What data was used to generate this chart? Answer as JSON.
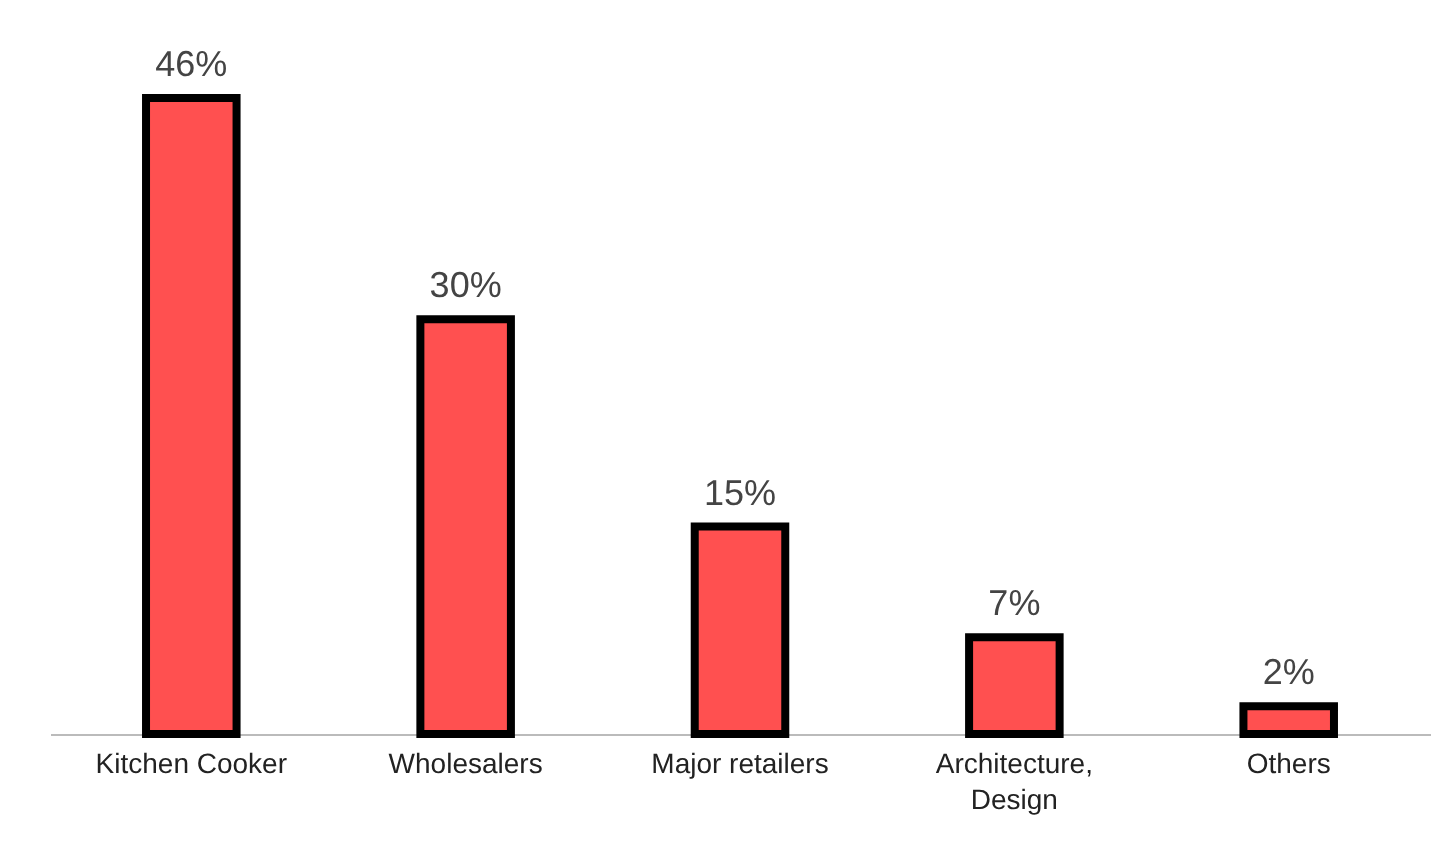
{
  "chart_data": {
    "type": "bar",
    "categories": [
      "Kitchen Cooker",
      "Wholesalers",
      "Major retailers",
      "Architecture, Design",
      "Others"
    ],
    "values": [
      46,
      30,
      15,
      7,
      2
    ],
    "value_labels": [
      "46%",
      "30%",
      "15%",
      "7%",
      "2%"
    ],
    "color": "#ff5050",
    "tick_labels": "x"
  }
}
